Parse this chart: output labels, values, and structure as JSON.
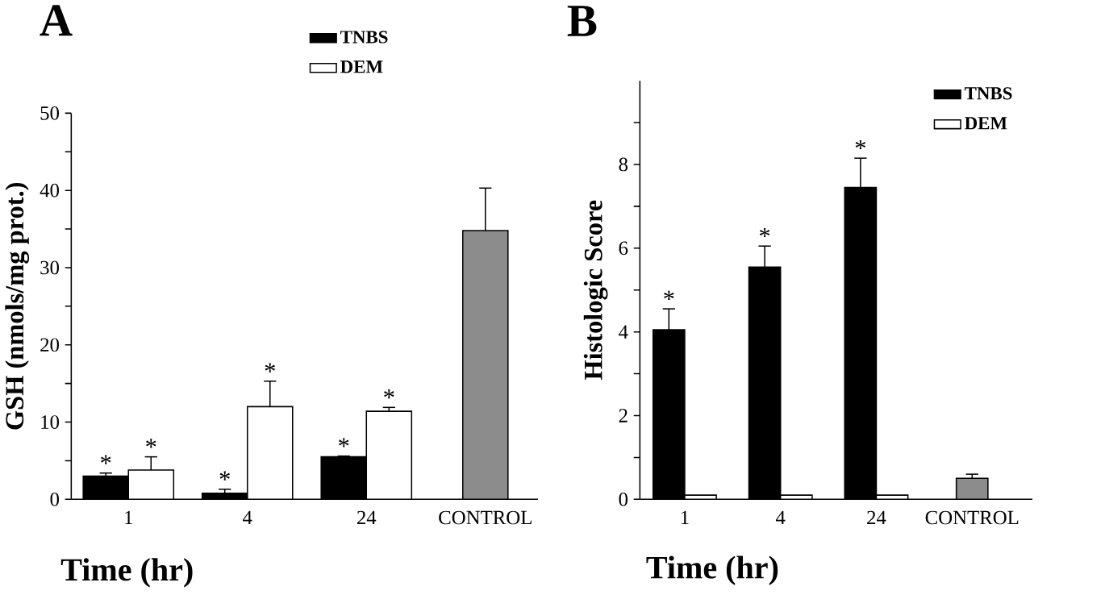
{
  "chart_data": [
    {
      "type": "bar",
      "title": "A",
      "xlabel": "Time (hr)",
      "ylabel": "GSH (nmols/mg prot.)",
      "categories": [
        "1",
        "4",
        "24",
        "CONTROL"
      ],
      "ylim": [
        0,
        50
      ],
      "yticks": [
        0,
        {
          "value": 5,
          "label": null
        },
        10,
        {
          "value": 15,
          "label": null
        },
        20,
        {
          "value": 25,
          "label": null
        },
        30,
        {
          "value": 35,
          "label": null
        },
        40,
        {
          "value": 45,
          "label": null
        },
        50
      ],
      "legend": "top",
      "series": [
        {
          "name": "TNBS",
          "color": "#000000",
          "values": [
            3.0,
            0.8,
            5.5,
            null
          ],
          "errors": [
            0.4,
            0.5,
            0.1,
            null
          ],
          "value_labels": [
            "*",
            "*",
            "*",
            null
          ]
        },
        {
          "name": "DEM",
          "color": "#ffffff",
          "values": [
            3.8,
            12.0,
            11.4,
            null
          ],
          "errors": [
            1.7,
            3.3,
            0.5,
            null
          ],
          "value_labels": [
            "*",
            "*",
            "*",
            null
          ]
        },
        {
          "color": "#8c8c8c",
          "values": [
            null,
            null,
            null,
            34.8
          ],
          "errors": [
            null,
            null,
            null,
            5.5
          ]
        }
      ]
    },
    {
      "type": "bar",
      "title": "B",
      "xlabel": "Time (hr)",
      "ylabel": "Histologic Score",
      "categories": [
        "1",
        "4",
        "24",
        "CONTROL"
      ],
      "ylim": [
        0,
        10
      ],
      "yticks": [
        0,
        {
          "value": 1,
          "label": null
        },
        2,
        {
          "value": 3,
          "label": null
        },
        4,
        {
          "value": 5,
          "label": null
        },
        6,
        {
          "value": 7,
          "label": null
        },
        8,
        {
          "value": 9,
          "label": null
        }
      ],
      "legend": "top right",
      "series": [
        {
          "name": "TNBS",
          "color": "#000000",
          "values": [
            4.05,
            5.55,
            7.45,
            null
          ],
          "errors": [
            0.5,
            0.5,
            0.7,
            null
          ],
          "value_labels": [
            "*",
            "*",
            "*",
            null
          ]
        },
        {
          "name": "DEM",
          "color": "#ffffff",
          "values": [
            0.1,
            0.1,
            0.1,
            null
          ]
        },
        {
          "color": "#8c8c8c",
          "values": [
            null,
            null,
            null,
            0.5
          ],
          "errors": [
            null,
            null,
            null,
            0.1
          ]
        }
      ]
    }
  ]
}
